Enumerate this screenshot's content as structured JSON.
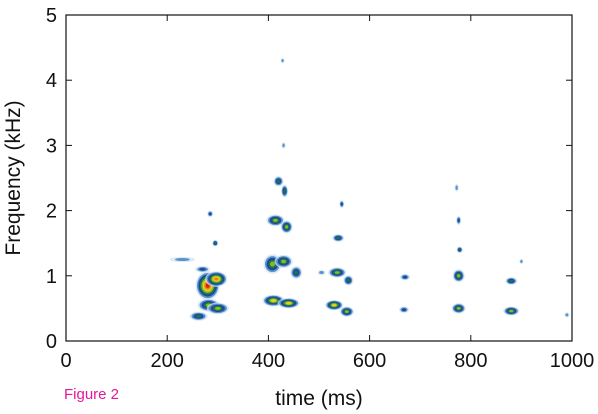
{
  "figure_label": "Figure 2",
  "chart_data": {
    "type": "heatmap",
    "xlabel": "time (ms)",
    "ylabel": "Frequency (kHz)",
    "xlim": [
      0,
      1000
    ],
    "ylim": [
      0,
      5
    ],
    "xticks": [
      "0",
      "200",
      "400",
      "600",
      "800",
      "1000"
    ],
    "xtick_values": [
      0,
      200,
      400,
      600,
      800,
      1000
    ],
    "yticks": [
      "0",
      "1",
      "2",
      "3",
      "4",
      "5"
    ],
    "ytick_values": [
      0,
      1,
      2,
      3,
      4,
      5
    ],
    "grid": false,
    "colormap": [
      "#cfe3f3",
      "#4f8fc8",
      "#1f3f9a",
      "#1e7a3e",
      "#8ebe2e",
      "#f2d21e",
      "#ef7a14",
      "#e01a1a"
    ],
    "blobs": [
      {
        "t": 280,
        "f": 0.85,
        "dt": 24,
        "df": 0.22,
        "level": 7
      },
      {
        "t": 297,
        "f": 0.95,
        "dt": 22,
        "df": 0.12,
        "level": 6
      },
      {
        "t": 282,
        "f": 0.55,
        "dt": 22,
        "df": 0.1,
        "level": 4
      },
      {
        "t": 300,
        "f": 0.5,
        "dt": 22,
        "df": 0.09,
        "level": 4
      },
      {
        "t": 262,
        "f": 0.38,
        "dt": 18,
        "df": 0.07,
        "level": 3
      },
      {
        "t": 230,
        "f": 1.25,
        "dt": 25,
        "df": 0.04,
        "level": 1
      },
      {
        "t": 270,
        "f": 1.1,
        "dt": 15,
        "df": 0.05,
        "level": 2
      },
      {
        "t": 295,
        "f": 1.5,
        "dt": 6,
        "df": 0.05,
        "level": 3
      },
      {
        "t": 285,
        "f": 1.95,
        "dt": 6,
        "df": 0.05,
        "level": 2
      },
      {
        "t": 410,
        "f": 0.62,
        "dt": 22,
        "df": 0.09,
        "level": 5
      },
      {
        "t": 440,
        "f": 0.58,
        "dt": 22,
        "df": 0.08,
        "level": 5
      },
      {
        "t": 408,
        "f": 1.18,
        "dt": 18,
        "df": 0.15,
        "level": 4
      },
      {
        "t": 430,
        "f": 1.22,
        "dt": 18,
        "df": 0.1,
        "level": 4
      },
      {
        "t": 455,
        "f": 1.05,
        "dt": 12,
        "df": 0.1,
        "level": 3
      },
      {
        "t": 414,
        "f": 1.85,
        "dt": 18,
        "df": 0.09,
        "level": 4
      },
      {
        "t": 436,
        "f": 1.75,
        "dt": 12,
        "df": 0.1,
        "level": 4
      },
      {
        "t": 420,
        "f": 2.45,
        "dt": 10,
        "df": 0.08,
        "level": 3
      },
      {
        "t": 432,
        "f": 2.3,
        "dt": 7,
        "df": 0.1,
        "level": 3
      },
      {
        "t": 428,
        "f": 4.3,
        "dt": 4,
        "df": 0.04,
        "level": 1
      },
      {
        "t": 430,
        "f": 3.0,
        "dt": 4,
        "df": 0.05,
        "level": 1
      },
      {
        "t": 530,
        "f": 0.55,
        "dt": 18,
        "df": 0.08,
        "level": 5
      },
      {
        "t": 555,
        "f": 0.45,
        "dt": 14,
        "df": 0.08,
        "level": 4
      },
      {
        "t": 536,
        "f": 1.05,
        "dt": 18,
        "df": 0.08,
        "level": 4
      },
      {
        "t": 558,
        "f": 0.93,
        "dt": 10,
        "df": 0.08,
        "level": 3
      },
      {
        "t": 538,
        "f": 1.58,
        "dt": 12,
        "df": 0.06,
        "level": 3
      },
      {
        "t": 545,
        "f": 2.1,
        "dt": 5,
        "df": 0.06,
        "level": 2
      },
      {
        "t": 505,
        "f": 1.05,
        "dt": 8,
        "df": 0.04,
        "level": 1
      },
      {
        "t": 668,
        "f": 0.48,
        "dt": 10,
        "df": 0.05,
        "level": 2
      },
      {
        "t": 670,
        "f": 0.98,
        "dt": 10,
        "df": 0.05,
        "level": 2
      },
      {
        "t": 776,
        "f": 0.5,
        "dt": 14,
        "df": 0.08,
        "level": 4
      },
      {
        "t": 776,
        "f": 1.0,
        "dt": 12,
        "df": 0.1,
        "level": 4
      },
      {
        "t": 778,
        "f": 1.4,
        "dt": 6,
        "df": 0.05,
        "level": 3
      },
      {
        "t": 776,
        "f": 1.85,
        "dt": 5,
        "df": 0.07,
        "level": 2
      },
      {
        "t": 772,
        "f": 2.35,
        "dt": 4,
        "df": 0.06,
        "level": 1
      },
      {
        "t": 880,
        "f": 0.46,
        "dt": 16,
        "df": 0.07,
        "level": 4
      },
      {
        "t": 880,
        "f": 0.92,
        "dt": 12,
        "df": 0.06,
        "level": 3
      },
      {
        "t": 900,
        "f": 1.22,
        "dt": 4,
        "df": 0.04,
        "level": 1
      },
      {
        "t": 990,
        "f": 0.4,
        "dt": 5,
        "df": 0.04,
        "level": 1
      }
    ]
  }
}
